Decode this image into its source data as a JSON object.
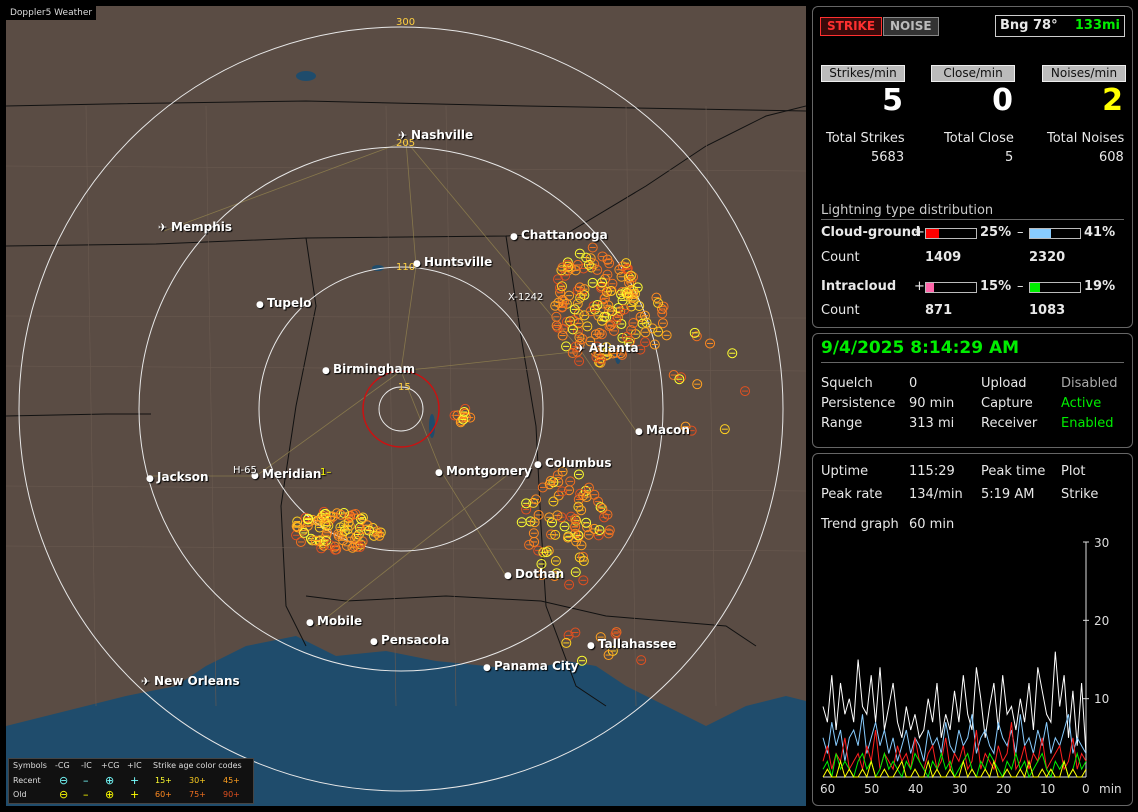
{
  "app": {
    "title": "Doppler5 Weather"
  },
  "map": {
    "range_labels": [
      "300",
      "205",
      "110",
      "15"
    ],
    "cities": [
      {
        "name": "Nashville",
        "airport": true
      },
      {
        "name": "Memphis",
        "airport": true
      },
      {
        "name": "Chattanooga",
        "airport": false
      },
      {
        "name": "Huntsville",
        "airport": false
      },
      {
        "name": "Tupelo",
        "airport": false
      },
      {
        "name": "Atlanta",
        "airport": true
      },
      {
        "name": "Birmingham",
        "airport": false
      },
      {
        "name": "Macon",
        "airport": false
      },
      {
        "name": "Columbus",
        "airport": false
      },
      {
        "name": "Jackson",
        "airport": false
      },
      {
        "name": "Meridian",
        "airport": false
      },
      {
        "name": "Montgomery",
        "airport": false
      },
      {
        "name": "Dothan",
        "airport": false
      },
      {
        "name": "Mobile",
        "airport": false
      },
      {
        "name": "Pensacola",
        "airport": false
      },
      {
        "name": "Tallahassee",
        "airport": false
      },
      {
        "name": "Panama City",
        "airport": false
      },
      {
        "name": "New Orleans",
        "airport": true
      }
    ],
    "storm_tags": [
      "X-1242",
      "H-65",
      "1–"
    ],
    "legend": {
      "symbols_title": "Symbols",
      "cols": [
        "-CG",
        "-IC",
        "+CG",
        "+IC"
      ],
      "recent": "Recent",
      "old": "Old",
      "age_title": "Strike age color codes",
      "recent_ages": [
        "15+",
        "30+",
        "45+"
      ],
      "old_ages": [
        "60+",
        "75+",
        "90+"
      ]
    }
  },
  "top": {
    "strike": "STRIKE",
    "noise": "NOISE",
    "bearing": "Bng 78°",
    "distance": "133mi",
    "strikes_per_min_label": "Strikes/min",
    "close_per_min_label": "Close/min",
    "noises_per_min_label": "Noises/min",
    "strikes_per_min": "5",
    "close_per_min": "0",
    "noises_per_min": "2",
    "total_strikes_label": "Total Strikes",
    "total_close_label": "Total Close",
    "total_noises_label": "Total Noises",
    "total_strikes": "5683",
    "total_close": "5",
    "total_noises": "608",
    "dist_title": "Lightning type distribution",
    "cg_label": "Cloud-ground",
    "ic_label": "Intracloud",
    "count_label": "Count",
    "cg_pos_pct": "25%",
    "cg_neg_pct": "41%",
    "cg_pos_count": "1409",
    "cg_neg_count": "2320",
    "ic_pos_pct": "15%",
    "ic_neg_pct": "19%",
    "ic_pos_count": "871",
    "ic_neg_count": "1083",
    "plus": "+",
    "minus": "–",
    "fractions": {
      "cg_pos": 0.25,
      "cg_neg": 0.41,
      "ic_pos": 0.15,
      "ic_neg": 0.19
    },
    "colors": {
      "cg_pos": "#ff0000",
      "cg_neg": "#88ccff",
      "ic_pos": "#ff66aa",
      "ic_neg": "#00ee00"
    }
  },
  "mid": {
    "datetime": "9/4/2025 8:14:29 AM",
    "squelch_label": "Squelch",
    "squelch": "0",
    "persistence_label": "Persistence",
    "persistence": "90 min",
    "range_label": "Range",
    "range": "313 mi",
    "upload_label": "Upload",
    "upload": "Disabled",
    "capture_label": "Capture",
    "capture": "Active",
    "receiver_label": "Receiver",
    "receiver": "Enabled"
  },
  "bottom": {
    "uptime_label": "Uptime",
    "uptime": "115:29",
    "peak_time_label": "Peak time",
    "peak_time": "5:19 AM",
    "plot_label": "Plot",
    "plot": "Strike",
    "peak_rate_label": "Peak rate",
    "peak_rate": "134/min",
    "trend_label": "Trend graph",
    "trend": "60 min",
    "y_ticks": [
      "30",
      "20",
      "10"
    ],
    "x_ticks": [
      "60",
      "50",
      "40",
      "30",
      "20",
      "10",
      "0",
      "min"
    ]
  },
  "chart_data": {
    "type": "line",
    "xlabel": "min",
    "xlim": [
      60,
      0
    ],
    "ylim": [
      0,
      30
    ],
    "grid": false,
    "series": [
      {
        "color": "#ffffff",
        "values": [
          9,
          7,
          13,
          6,
          12,
          8,
          10,
          7,
          15,
          9,
          8,
          13,
          7,
          14,
          6,
          9,
          12,
          7,
          5,
          9,
          6,
          8,
          5,
          6,
          10,
          7,
          12,
          5,
          8,
          6,
          11,
          7,
          13,
          8,
          6,
          14,
          10,
          5,
          9,
          12,
          6,
          13,
          8,
          9,
          6,
          10,
          7,
          12,
          6,
          14,
          11,
          8,
          7,
          16,
          9,
          13,
          5,
          11,
          4,
          12,
          3
        ]
      },
      {
        "color": "#88ccff",
        "values": [
          5,
          3,
          7,
          4,
          6,
          2,
          5,
          6,
          4,
          8,
          3,
          5,
          7,
          4,
          6,
          3,
          5,
          2,
          4,
          6,
          3,
          5,
          4,
          2,
          6,
          4,
          5,
          3,
          7,
          4,
          3,
          6,
          4,
          5,
          8,
          3,
          5,
          6,
          4,
          3,
          7,
          5,
          4,
          6,
          3,
          8,
          4,
          5,
          3,
          6,
          4,
          7,
          3,
          5,
          4,
          6,
          8,
          3,
          5,
          4,
          3
        ]
      },
      {
        "color": "#ff2020",
        "values": [
          2,
          4,
          1,
          3,
          2,
          5,
          1,
          2,
          3,
          1,
          4,
          2,
          6,
          1,
          3,
          2,
          1,
          4,
          2,
          3,
          1,
          5,
          2,
          1,
          3,
          4,
          1,
          2,
          5,
          1,
          3,
          2,
          4,
          1,
          2,
          6,
          1,
          3,
          2,
          1,
          4,
          2,
          3,
          7,
          1,
          2,
          4,
          1,
          3,
          2,
          5,
          1,
          2,
          3,
          4,
          1,
          2,
          5,
          1,
          3,
          2
        ]
      },
      {
        "color": "#00ee00",
        "values": [
          1,
          2,
          0,
          3,
          1,
          2,
          1,
          0,
          2,
          3,
          1,
          2,
          0,
          1,
          3,
          1,
          2,
          1,
          0,
          2,
          1,
          3,
          2,
          1,
          0,
          2,
          1,
          3,
          1,
          2,
          0,
          1,
          2,
          3,
          1,
          0,
          2,
          1,
          3,
          2,
          1,
          0,
          2,
          1,
          3,
          1,
          2,
          0,
          1,
          2,
          3,
          1,
          0,
          2,
          1,
          2,
          0,
          1,
          3,
          1,
          2
        ]
      },
      {
        "color": "#ffff00",
        "values": [
          0,
          1,
          0,
          0,
          2,
          0,
          1,
          0,
          0,
          1,
          0,
          2,
          0,
          0,
          1,
          0,
          0,
          1,
          2,
          0,
          0,
          1,
          0,
          0,
          2,
          0,
          1,
          0,
          0,
          1,
          0,
          0,
          2,
          0,
          1,
          0,
          0,
          1,
          0,
          2,
          0,
          0,
          1,
          0,
          0,
          1,
          0,
          2,
          0,
          0,
          1,
          0,
          1,
          0,
          0,
          2,
          0,
          1,
          0,
          0,
          1
        ]
      }
    ]
  }
}
